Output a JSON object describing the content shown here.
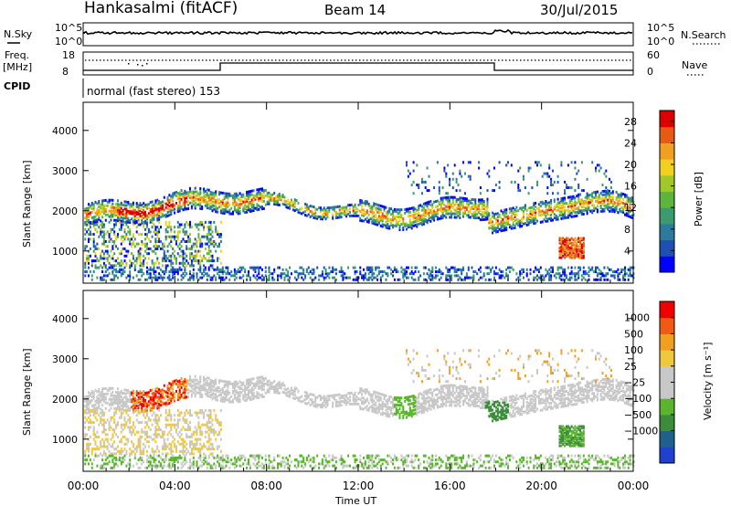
{
  "header": {
    "station": "Hankasalmi (fitACF)",
    "beam": "Beam 14",
    "date": "30/Jul/2015"
  },
  "aux": {
    "nsky_label": "N.Sky",
    "nsky_top": "10^5",
    "nsky_bottom": "10^0",
    "nsearch_label": "N.Search",
    "nsearch_top": "10^5",
    "nsearch_bottom": "10^0",
    "freq_label_1": "Freq.",
    "freq_label_2": "[MHz]",
    "freq_top": "18",
    "freq_bottom": "8",
    "nave_label": "Nave",
    "nave_top": "60",
    "nave_bottom": "0",
    "cpid_label": "CPID",
    "mode_text": "normal (fast stereo) 153"
  },
  "colors": {
    "power": [
      "#0000ff",
      "#1e50b4",
      "#2d7a9e",
      "#3c9b6e",
      "#5fb43c",
      "#a0c828",
      "#f0d21e",
      "#f0a01e",
      "#e65a14",
      "#dc0000"
    ],
    "velocity": [
      "#2040d0",
      "#20608c",
      "#3c8c3c",
      "#5ab42d",
      "#c8c8c8",
      "#c8c8c8",
      "#f0c83c",
      "#f0a01e",
      "#f05a14",
      "#f00000"
    ]
  },
  "chart_data": [
    {
      "type": "heatmap",
      "name": "power",
      "xlabel": "",
      "ylabel": "Slant Range [km]",
      "x_ticks": [],
      "xlim": [
        0,
        24
      ],
      "ylim": [
        200,
        4700
      ],
      "y_ticks": [
        "1000",
        "2000",
        "3000",
        "4000"
      ],
      "colorbar_label": "Power [dB]",
      "colorbar_ticks": [
        "4",
        "8",
        "12",
        "16",
        "20",
        "24",
        "28"
      ],
      "colorbar_range": [
        0,
        30
      ]
    },
    {
      "type": "heatmap",
      "name": "velocity",
      "xlabel": "Time UT",
      "ylabel": "Slant Range [km]",
      "xlim": [
        0,
        24
      ],
      "ylim": [
        200,
        4700
      ],
      "x_ticks": [
        "00:00",
        "04:00",
        "08:00",
        "12:00",
        "16:00",
        "20:00",
        "00:00"
      ],
      "y_ticks": [
        "1000",
        "2000",
        "3000",
        "4000"
      ],
      "colorbar_label": "Velocity [m s⁻¹]",
      "colorbar_ticks": [
        "1000",
        "500",
        "100",
        "25",
        "−25",
        "−100",
        "−500",
        "−1000"
      ]
    }
  ]
}
